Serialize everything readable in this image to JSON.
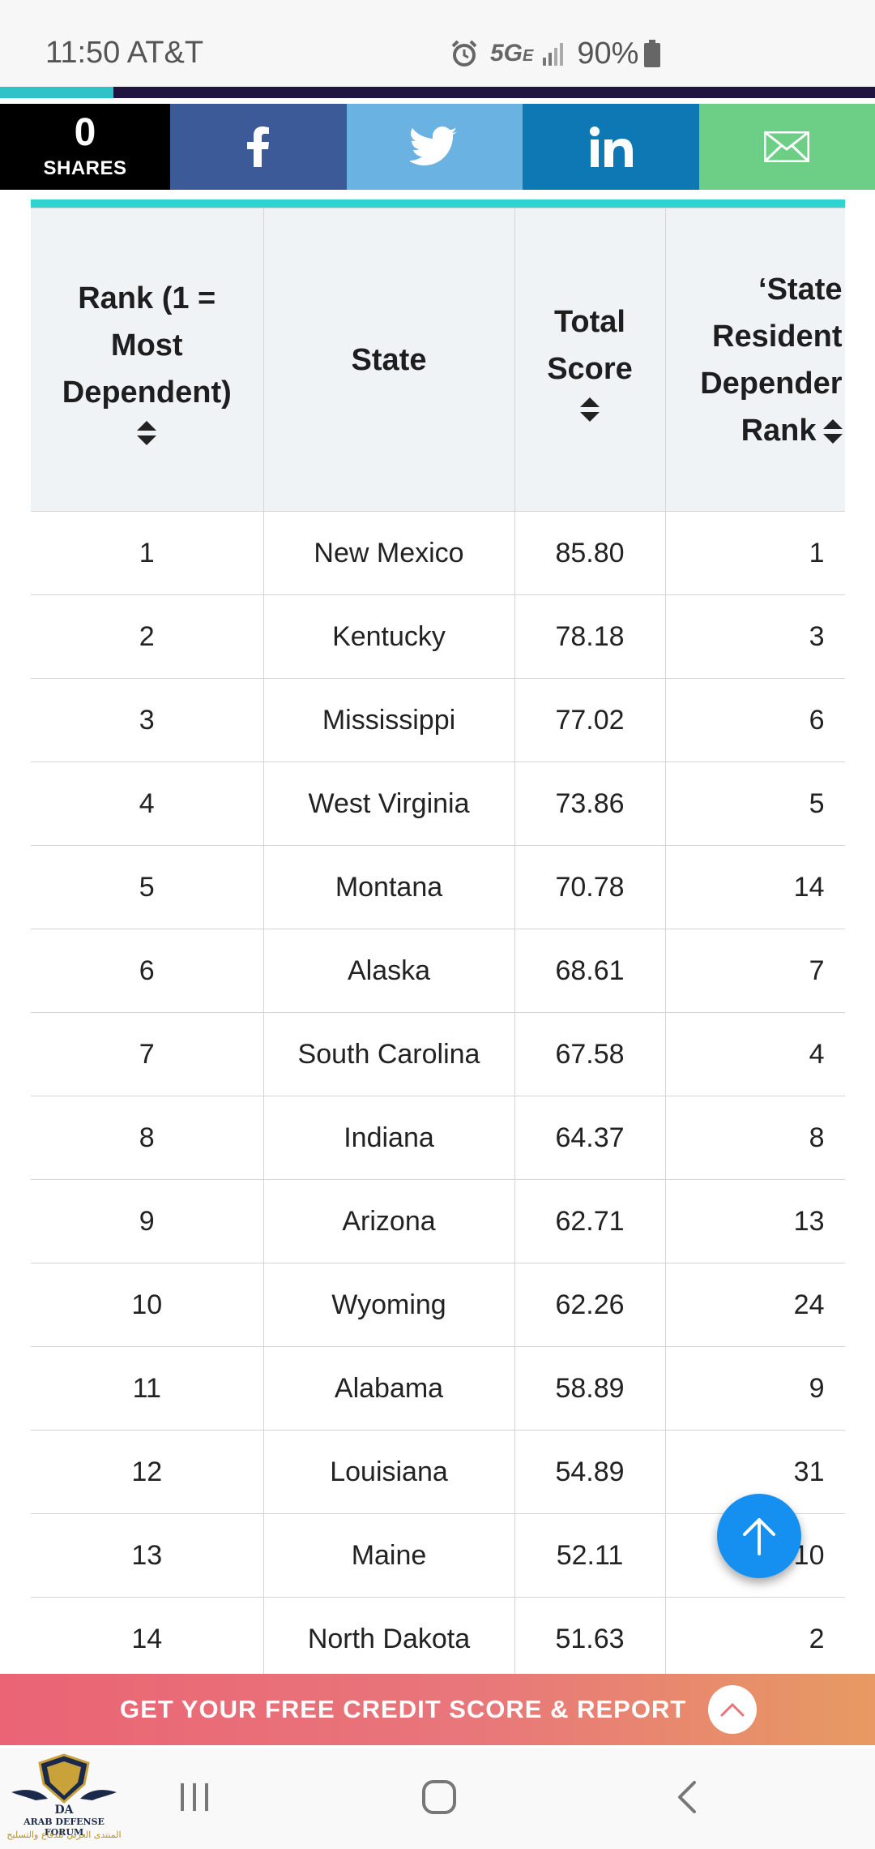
{
  "status_bar": {
    "time": "11:50 AT&T",
    "network": "5G",
    "network_suffix": "E",
    "battery": "90%"
  },
  "progress": {
    "fraction": 0.13,
    "track_color": "#1f1540",
    "fill_color": "#2fc3c8"
  },
  "share_bar": {
    "count": "0",
    "count_label": "SHARES",
    "buttons": [
      {
        "network": "facebook",
        "icon": "facebook-icon",
        "color": "#3d5a98"
      },
      {
        "network": "twitter",
        "icon": "twitter-icon",
        "color": "#6ab2e2"
      },
      {
        "network": "linkedin",
        "icon": "linkedin-icon",
        "color": "#0e78b5"
      },
      {
        "network": "email",
        "icon": "mail-icon",
        "color": "#6dce86"
      }
    ]
  },
  "table": {
    "headers": {
      "rank_line1": "Rank (1 =",
      "rank_line2": "Most",
      "rank_line3": "Dependent)",
      "state": "State",
      "score_line1": "Total",
      "score_line2": "Score",
      "res_line1": "‘State",
      "res_line2": "Resident",
      "res_line3": "Depender",
      "res_line4": "Rank"
    },
    "rows": [
      {
        "rank": "1",
        "state": "New Mexico",
        "score": "85.80",
        "res": "1"
      },
      {
        "rank": "2",
        "state": "Kentucky",
        "score": "78.18",
        "res": "3"
      },
      {
        "rank": "3",
        "state": "Mississippi",
        "score": "77.02",
        "res": "6"
      },
      {
        "rank": "4",
        "state": "West Virginia",
        "score": "73.86",
        "res": "5"
      },
      {
        "rank": "5",
        "state": "Montana",
        "score": "70.78",
        "res": "14"
      },
      {
        "rank": "6",
        "state": "Alaska",
        "score": "68.61",
        "res": "7"
      },
      {
        "rank": "7",
        "state": "South Carolina",
        "score": "67.58",
        "res": "4"
      },
      {
        "rank": "8",
        "state": "Indiana",
        "score": "64.37",
        "res": "8"
      },
      {
        "rank": "9",
        "state": "Arizona",
        "score": "62.71",
        "res": "13"
      },
      {
        "rank": "10",
        "state": "Wyoming",
        "score": "62.26",
        "res": "24"
      },
      {
        "rank": "11",
        "state": "Alabama",
        "score": "58.89",
        "res": "9"
      },
      {
        "rank": "12",
        "state": "Louisiana",
        "score": "54.89",
        "res": "31"
      },
      {
        "rank": "13",
        "state": "Maine",
        "score": "52.11",
        "res": "10"
      },
      {
        "rank": "14",
        "state": "North Dakota",
        "score": "51.63",
        "res": "2"
      }
    ]
  },
  "scroll_top_button": {
    "icon": "arrow-up-icon",
    "color": "#1690f0"
  },
  "cta": {
    "label": "GET YOUR FREE CREDIT SCORE & REPORT",
    "icon": "chevron-up-icon"
  },
  "watermark": {
    "logo": "DA",
    "line1": "ARAB DEFENSE FORUM",
    "line2": "المنتدى العربي للدفاع والتسليح"
  },
  "navbar": {
    "icons": [
      "recent-apps-icon",
      "home-icon",
      "back-icon"
    ]
  }
}
